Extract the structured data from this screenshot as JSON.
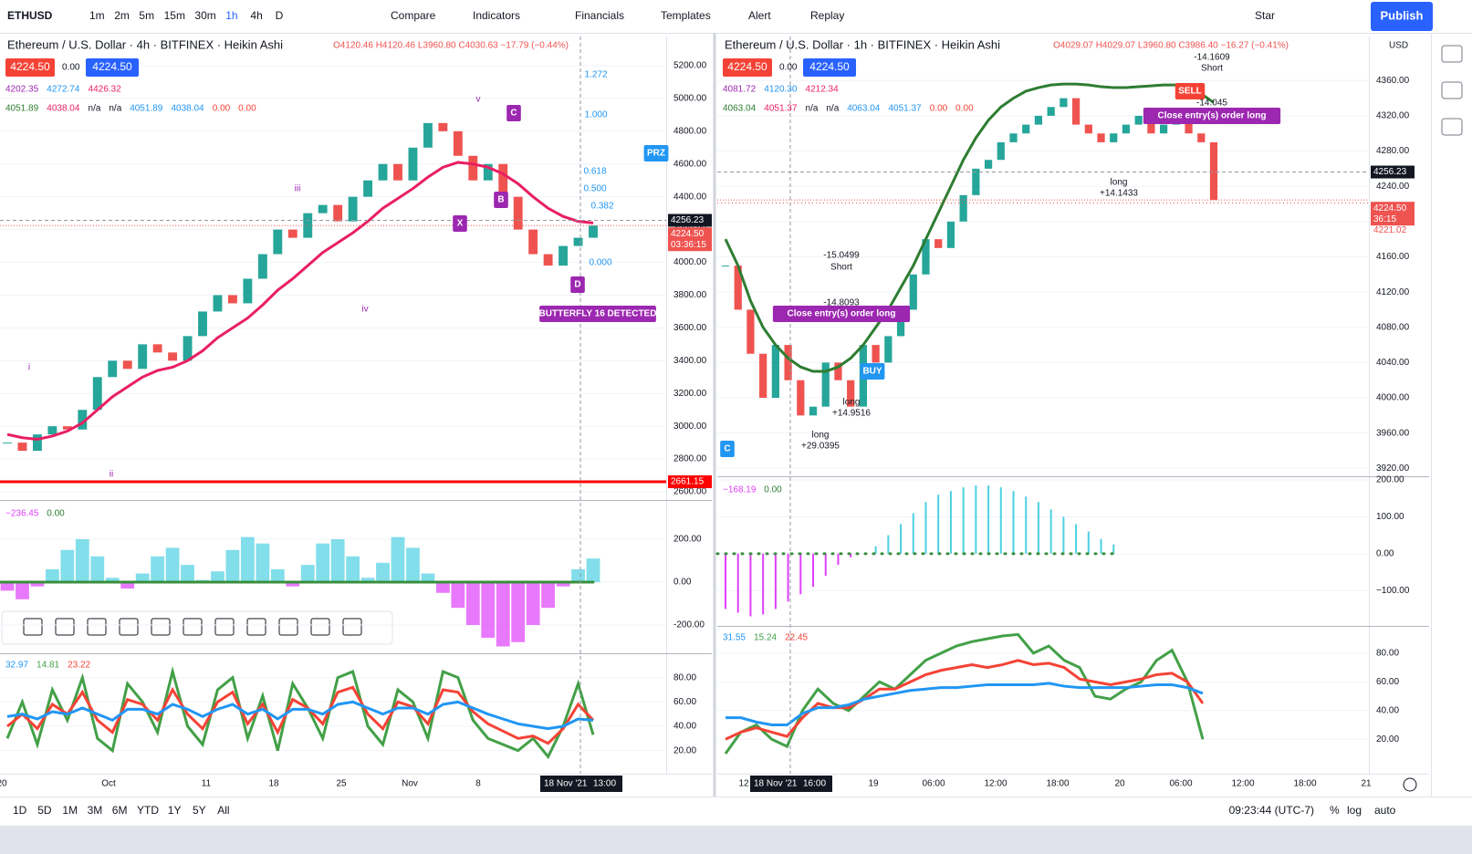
{
  "toolbar": {
    "symbol": "ETHUSD",
    "intervals": [
      "1m",
      "2m",
      "5m",
      "15m",
      "30m",
      "1h",
      "4h",
      "D"
    ],
    "buttons": [
      "Compare",
      "Indicators",
      "Financials",
      "Templates",
      "Alert",
      "Replay"
    ],
    "star": "Star",
    "publish": "Publish"
  },
  "charts": [
    {
      "header": {
        "title": "Ethereum / U.S. Dollar · 4h · BITFINEX · Heikin Ashi",
        "ohlc": "O4120.46 H4120.46 L3960.80 C4030.63 −17.79 (−0.44%)",
        "sell": "4224.50",
        "spread": "0.00",
        "buy": "4224.50"
      },
      "legend": [
        [
          "4202.35",
          "4272.74",
          "4426.32"
        ],
        [
          "4051.89",
          "4038.04",
          "n/a",
          "n/a",
          "4051.89",
          "4038.04",
          "0.00",
          "0.00"
        ]
      ],
      "annotations": [
        "1.272",
        "1.000",
        "0.618",
        "0.500",
        "0.382",
        "0.000",
        "PRZ",
        "BUTTERFLY 16 DETECTED",
        "X",
        "B",
        "C",
        "D",
        "i",
        "ii",
        "iii",
        "iv",
        "v"
      ],
      "time_labels": [
        "20",
        "Oct",
        "11",
        "18",
        "25",
        "Nov",
        "8"
      ],
      "time_cursor": "18 Nov '21",
      "time_cursor_time": "13:00",
      "main": {
        "ylim": [
          2550,
          5378
        ],
        "yticks": [
          {
            "value": 2600,
            "label": "2600.00"
          },
          {
            "value": 2800,
            "label": "2800.00"
          },
          {
            "value": 3000,
            "label": "3000.00"
          },
          {
            "value": 3200,
            "label": "3200.00"
          },
          {
            "value": 3400,
            "label": "3400.00"
          },
          {
            "value": 3600,
            "label": "3600.00"
          },
          {
            "value": 3800,
            "label": "3800.00"
          },
          {
            "value": 4000,
            "label": "4000.00"
          },
          {
            "value": 4200,
            "label": "4200.00"
          },
          {
            "value": 4400,
            "label": "4400.00"
          },
          {
            "value": 4600,
            "label": "4600.00"
          },
          {
            "value": 4800,
            "label": "4800.00"
          },
          {
            "value": 5000,
            "label": "5000.00"
          },
          {
            "value": 5200,
            "label": "5200.00"
          }
        ],
        "crosshair": 4256.23,
        "last": {
          "value": 4224.5,
          "label": "4224.50"
        },
        "countdown": "03:36:15",
        "level": 2661.15,
        "closes": [
          2900,
          2850,
          2950,
          3000,
          2980,
          3100,
          3300,
          3400,
          3350,
          3500,
          3450,
          3400,
          3550,
          3700,
          3800,
          3750,
          3900,
          4050,
          4200,
          4150,
          4300,
          4350,
          4250,
          4400,
          4500,
          4600,
          4500,
          4700,
          4850,
          4800,
          4650,
          4500,
          4600,
          4400,
          4200,
          4050,
          3980,
          4100,
          4150,
          4224.5
        ],
        "ma": [
          2950,
          2930,
          2920,
          2940,
          2970,
          3020,
          3100,
          3180,
          3240,
          3300,
          3340,
          3360,
          3400,
          3460,
          3540,
          3600,
          3660,
          3740,
          3830,
          3900,
          3980,
          4060,
          4120,
          4180,
          4250,
          4330,
          4390,
          4450,
          4520,
          4580,
          4610,
          4600,
          4580,
          4540,
          4480,
          4400,
          4330,
          4280,
          4250,
          4240
        ]
      },
      "osc": {
        "legend": [
          "−236.45",
          "0.00"
        ],
        "ylim": [
          -332,
          383
        ],
        "yticks": [
          {
            "value": -200,
            "label": "-200.00"
          },
          {
            "value": 0,
            "label": "0.00"
          },
          {
            "value": 200,
            "label": "200.00"
          }
        ],
        "values": [
          -40,
          -80,
          -20,
          60,
          150,
          200,
          120,
          20,
          -30,
          40,
          120,
          160,
          80,
          10,
          50,
          150,
          210,
          180,
          60,
          -20,
          80,
          180,
          200,
          120,
          20,
          90,
          210,
          160,
          40,
          -50,
          -120,
          -200,
          -260,
          -300,
          -280,
          -200,
          -120,
          -20,
          60,
          110
        ]
      },
      "rsi": {
        "legend": [
          "32.97",
          "14.81",
          "23.22"
        ],
        "ylim": [
          1,
          100
        ],
        "yticks": [
          {
            "value": 20,
            "label": "20.00"
          },
          {
            "value": 40,
            "label": "40.00"
          },
          {
            "value": 60,
            "label": "60.00"
          },
          {
            "value": 80,
            "label": "80.00"
          }
        ],
        "series": [
          {
            "color": "#43a047",
            "values": [
              30,
              60,
              25,
              70,
              45,
              80,
              30,
              20,
              75,
              60,
              35,
              85,
              40,
              25,
              70,
              80,
              30,
              65,
              20,
              75,
              55,
              30,
              80,
              85,
              40,
              25,
              70,
              60,
              30,
              85,
              80,
              45,
              30,
              25,
              20,
              30,
              15,
              40,
              75,
              33
            ]
          },
          {
            "color": "#f44336",
            "values": [
              40,
              50,
              38,
              58,
              50,
              68,
              45,
              35,
              62,
              58,
              45,
              70,
              50,
              38,
              60,
              68,
              42,
              58,
              35,
              62,
              55,
              42,
              68,
              72,
              50,
              38,
              60,
              56,
              42,
              70,
              68,
              52,
              42,
              36,
              30,
              32,
              26,
              38,
              58,
              45
            ]
          },
          {
            "color": "#2196f3",
            "values": [
              48,
              50,
              46,
              52,
              50,
              55,
              50,
              45,
              54,
              54,
              50,
              58,
              54,
              48,
              54,
              58,
              50,
              54,
              46,
              54,
              54,
              50,
              58,
              60,
              55,
              50,
              55,
              55,
              50,
              58,
              60,
              55,
              50,
              46,
              42,
              40,
              38,
              40,
              46,
              45
            ]
          }
        ]
      }
    },
    {
      "header": {
        "title": "Ethereum / U.S. Dollar · 1h · BITFINEX · Heikin Ashi",
        "ohlc": "O4029.07 H4029.07 L3960.80 C3986.40 −16.27 (−0.41%)",
        "sell": "4224.50",
        "spread": "0.00",
        "buy": "4224.50"
      },
      "legend": [
        [
          "4081.72",
          "4120.30",
          "4212.34"
        ],
        [
          "4063.04",
          "4051.37",
          "n/a",
          "n/a",
          "4063.04",
          "4051.37",
          "0.00",
          "0.00"
        ]
      ],
      "annotations": [
        "-14.1609",
        "Short",
        "SELL",
        "-14.045",
        "Close entry(s) order long",
        "long",
        "+14.1433",
        "-15.0499",
        "Short",
        "-14.8093",
        "Close entry(s) order long",
        "BUY",
        "long",
        "+14.9516",
        "long",
        "+29.0395",
        "C"
      ],
      "time_labels": [
        "12",
        "19",
        "06:00",
        "12:00",
        "18:00",
        "20",
        "06:00",
        "12:00",
        "18:00",
        "21"
      ],
      "time_cursor": "18 Nov '21",
      "time_cursor_time": "16:00",
      "currency": "USD",
      "main": {
        "ylim": [
          3911,
          4410
        ],
        "yticks": [
          {
            "value": 3920,
            "label": "3920.00"
          },
          {
            "value": 3960,
            "label": "3960.00"
          },
          {
            "value": 4000,
            "label": "4000.00"
          },
          {
            "value": 4040,
            "label": "4040.00"
          },
          {
            "value": 4080,
            "label": "4080.00"
          },
          {
            "value": 4120,
            "label": "4120.00"
          },
          {
            "value": 4160,
            "label": "4160.00"
          },
          {
            "value": 4200,
            "label": "4200.00"
          },
          {
            "value": 4240,
            "label": "4240.00"
          },
          {
            "value": 4280,
            "label": "4280.00"
          },
          {
            "value": 4320,
            "label": "4320.00"
          },
          {
            "value": 4360,
            "label": "4360.00"
          }
        ],
        "crosshair": 4256.23,
        "last": {
          "value": 4224.5,
          "label": "4224.50"
        },
        "second": 4221.02,
        "countdown": "36:15",
        "closes": [
          4150,
          4100,
          4050,
          4000,
          4060,
          4020,
          3980,
          3990,
          4040,
          4020,
          3990,
          4060,
          4040,
          4070,
          4100,
          4140,
          4180,
          4170,
          4200,
          4230,
          4260,
          4270,
          4290,
          4300,
          4310,
          4320,
          4330,
          4340,
          4310,
          4300,
          4290,
          4300,
          4310,
          4320,
          4300,
          4310,
          4320,
          4300,
          4290,
          4224.5
        ],
        "ma": [
          4180,
          4150,
          4110,
          4080,
          4060,
          4045,
          4035,
          4030,
          4030,
          4035,
          4045,
          4060,
          4080,
          4100,
          4125,
          4150,
          4180,
          4210,
          4240,
          4270,
          4295,
          4315,
          4330,
          4340,
          4348,
          4352,
          4355,
          4356,
          4356,
          4355,
          4353,
          4352,
          4352,
          4353,
          4354,
          4355,
          4355,
          4352,
          4345,
          4335
        ]
      },
      "osc": {
        "legend": [
          "−168.19",
          "0.00"
        ],
        "ylim": [
          -196,
          210
        ],
        "yticks": [
          {
            "value": -100,
            "label": "−100.00"
          },
          {
            "value": 0,
            "label": "0.00"
          },
          {
            "value": 100,
            "label": "100.00"
          },
          {
            "value": 200,
            "label": "200.00"
          }
        ],
        "values": [
          -150,
          -160,
          -170,
          -165,
          -150,
          -130,
          -110,
          -90,
          -60,
          -30,
          -10,
          0,
          20,
          50,
          80,
          110,
          140,
          160,
          170,
          180,
          185,
          185,
          180,
          170,
          155,
          140,
          120,
          100,
          80,
          60,
          40,
          25
        ]
      },
      "rsi": {
        "legend": [
          "31.55",
          "15.24",
          "22.45"
        ],
        "ylim": [
          -4,
          99
        ],
        "yticks": [
          {
            "value": 20,
            "label": "20.00"
          },
          {
            "value": 40,
            "label": "40.00"
          },
          {
            "value": 60,
            "label": "60.00"
          },
          {
            "value": 80,
            "label": "80.00"
          }
        ],
        "series": [
          {
            "color": "#43a047",
            "values": [
              10,
              25,
              30,
              20,
              15,
              40,
              55,
              45,
              40,
              50,
              60,
              55,
              65,
              75,
              80,
              85,
              88,
              90,
              92,
              93,
              80,
              85,
              75,
              70,
              50,
              48,
              55,
              60,
              75,
              82,
              60,
              20
            ]
          },
          {
            "color": "#f44336",
            "values": [
              20,
              25,
              28,
              25,
              22,
              35,
              45,
              42,
              42,
              48,
              55,
              55,
              60,
              65,
              68,
              70,
              72,
              70,
              72,
              75,
              72,
              73,
              70,
              62,
              60,
              58,
              60,
              62,
              65,
              66,
              60,
              45
            ]
          },
          {
            "color": "#2196f3",
            "values": [
              35,
              35,
              32,
              30,
              30,
              38,
              42,
              42,
              44,
              48,
              50,
              52,
              54,
              55,
              56,
              56,
              57,
              58,
              58,
              58,
              58,
              59,
              57,
              56,
              56,
              56,
              56,
              57,
              58,
              58,
              56,
              52
            ]
          }
        ]
      }
    }
  ],
  "bottom": {
    "ranges": [
      "1D",
      "5D",
      "1M",
      "3M",
      "6M",
      "YTD",
      "1Y",
      "5Y",
      "All"
    ],
    "clock": "09:23:44 (UTC-7)",
    "percent": "%",
    "log": "log",
    "auto": "auto"
  }
}
